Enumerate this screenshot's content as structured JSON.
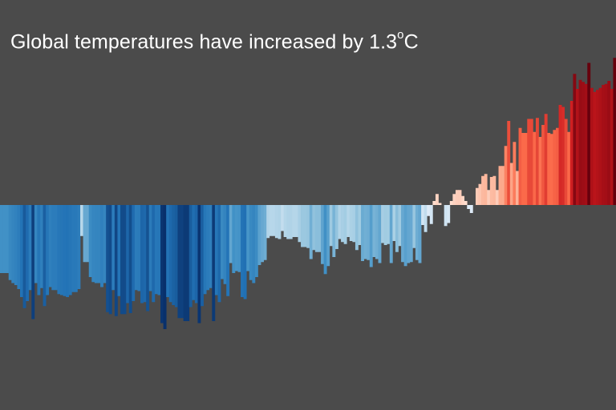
{
  "title": {
    "main": "Global temperatures have increased by 1.3",
    "degree": "o",
    "unit": "C"
  },
  "chart_data": {
    "type": "bar",
    "ylim": [
      -1.25,
      1.5
    ],
    "grid": false,
    "legend": "none",
    "baseline": 0,
    "colors": {
      "background": "#4b4b4b",
      "title": "#ffffff",
      "cold_extreme": "#08306b",
      "cold_light": "#deebf7",
      "warm_light": "#fee0d2",
      "warm_extreme": "#67000d"
    },
    "values": [
      -0.68,
      -0.68,
      -0.68,
      -0.75,
      -0.78,
      -0.8,
      -0.84,
      -0.92,
      -1.03,
      -0.96,
      -0.85,
      -1.14,
      -0.78,
      -0.9,
      -0.83,
      -1.01,
      -0.9,
      -0.82,
      -0.85,
      -0.85,
      -0.89,
      -0.9,
      -0.91,
      -0.92,
      -0.9,
      -0.87,
      -0.87,
      -0.84,
      -0.31,
      -0.57,
      -0.57,
      -0.72,
      -0.77,
      -0.78,
      -0.78,
      -0.82,
      -0.78,
      -1.07,
      -1.09,
      -0.85,
      -1.11,
      -0.91,
      -1.09,
      -1.09,
      -0.98,
      -1.08,
      -0.96,
      -0.85,
      -0.86,
      -0.98,
      -0.97,
      -1.06,
      -0.86,
      -0.97,
      -0.89,
      -0.9,
      -1.18,
      -1.24,
      -0.92,
      -0.97,
      -1.0,
      -1.02,
      -1.13,
      -1.13,
      -1.16,
      -1.16,
      -1.02,
      -0.95,
      -0.98,
      -1.18,
      -1.01,
      -0.89,
      -0.85,
      -0.83,
      -1.16,
      -0.9,
      -0.97,
      -0.74,
      -0.79,
      -0.91,
      -0.58,
      -0.68,
      -0.66,
      -0.67,
      -0.92,
      -0.94,
      -0.66,
      -0.75,
      -0.78,
      -0.72,
      -0.6,
      -0.57,
      -0.55,
      -0.33,
      -0.31,
      -0.31,
      -0.33,
      -0.34,
      -0.26,
      -0.32,
      -0.34,
      -0.34,
      -0.32,
      -0.32,
      -0.37,
      -0.42,
      -0.42,
      -0.43,
      -0.54,
      -0.45,
      -0.47,
      -0.47,
      -0.59,
      -0.69,
      -0.61,
      -0.41,
      -0.52,
      -0.44,
      -0.34,
      -0.37,
      -0.39,
      -0.32,
      -0.36,
      -0.37,
      -0.45,
      -0.4,
      -0.56,
      -0.54,
      -0.55,
      -0.62,
      -0.52,
      -0.54,
      -0.58,
      -0.38,
      -0.4,
      -0.39,
      -0.58,
      -0.36,
      -0.47,
      -0.41,
      -0.57,
      -0.61,
      -0.58,
      -0.57,
      -0.43,
      -0.55,
      -0.58,
      -0.2,
      -0.27,
      -0.11,
      -0.19,
      0.04,
      0.11,
      0.02,
      0.0,
      -0.21,
      -0.18,
      0.04,
      0.11,
      0.15,
      0.15,
      0.09,
      0.04,
      -0.04,
      -0.08,
      0.0,
      0.17,
      0.21,
      0.29,
      0.31,
      0.15,
      0.28,
      0.29,
      0.15,
      0.39,
      0.39,
      0.59,
      0.84,
      0.42,
      0.63,
      0.34,
      0.77,
      0.72,
      0.72,
      0.86,
      0.86,
      0.73,
      0.87,
      0.68,
      0.8,
      0.91,
      0.72,
      0.71,
      0.75,
      0.77,
      1.0,
      0.98,
      0.86,
      0.73,
      1.04,
      1.31,
      1.16,
      1.25,
      1.23,
      1.21,
      1.42,
      1.17,
      1.13,
      1.15,
      1.17,
      1.2,
      1.21,
      1.24,
      1.16,
      1.47
    ]
  }
}
